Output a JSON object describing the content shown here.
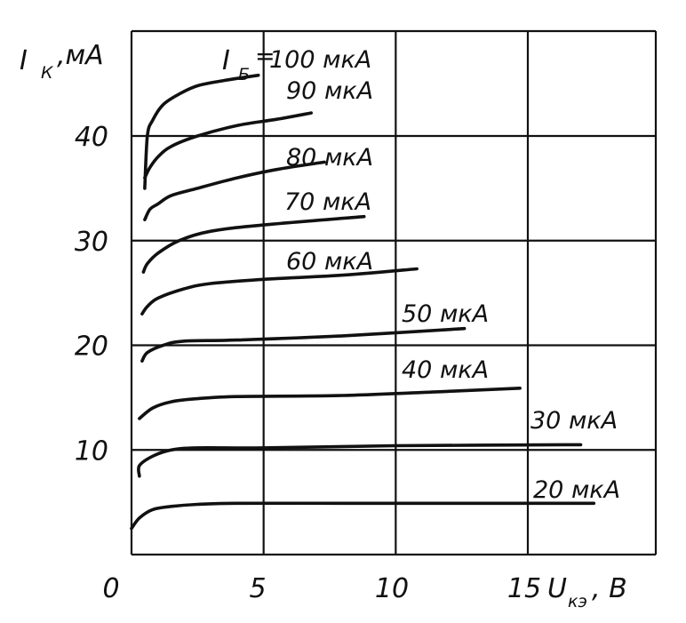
{
  "chart_data": {
    "type": "line",
    "title": "",
    "xlabel": {
      "main": "U",
      "sub": "кэ",
      "unit": ", В"
    },
    "ylabel": {
      "main": "I",
      "sub": "К",
      "unit": ",мА"
    },
    "parameter_label": {
      "main": "I",
      "sub": "Б",
      "eq": "="
    },
    "xlim": [
      0,
      19
    ],
    "ylim": [
      0,
      50
    ],
    "x_ticks": [
      0,
      5,
      10,
      15
    ],
    "y_ticks": [
      10,
      20,
      30,
      40
    ],
    "x_tick_labels": [
      "0",
      "5",
      "10",
      "15"
    ],
    "y_tick_labels": [
      "10",
      "20",
      "30",
      "40"
    ],
    "grid": true,
    "series": [
      {
        "name": "20 мкА",
        "x": [
          0,
          0.3,
          0.8,
          1.5,
          2.5,
          4,
          8,
          12,
          17.5
        ],
        "y": [
          2.5,
          3.5,
          4.3,
          4.6,
          4.8,
          4.9,
          4.9,
          4.9,
          4.9
        ]
      },
      {
        "name": "30 мкА",
        "x": [
          0.3,
          0.3,
          0.8,
          1.5,
          2.5,
          5,
          10,
          17
        ],
        "y": [
          7.5,
          8.5,
          9.4,
          10.0,
          10.2,
          10.2,
          10.4,
          10.5
        ]
      },
      {
        "name": "40 мкА",
        "x": [
          0.3,
          0.8,
          1.5,
          2.5,
          4,
          8,
          12,
          14.7
        ],
        "y": [
          13,
          14,
          14.6,
          14.9,
          15.1,
          15.2,
          15.6,
          15.9
        ]
      },
      {
        "name": "50 мкА",
        "x": [
          0.4,
          0.6,
          1.2,
          2,
          4,
          8,
          12.6
        ],
        "y": [
          18.5,
          19.3,
          20.0,
          20.4,
          20.5,
          20.9,
          21.6
        ]
      },
      {
        "name": "60 мкА",
        "x": [
          0.4,
          0.6,
          1,
          2,
          3,
          5,
          8,
          10.8
        ],
        "y": [
          23,
          23.7,
          24.5,
          25.4,
          25.9,
          26.3,
          26.7,
          27.3
        ]
      },
      {
        "name": "70 мкА",
        "x": [
          0.45,
          0.6,
          1,
          1.8,
          3,
          5,
          8.8
        ],
        "y": [
          27,
          27.8,
          28.8,
          30.0,
          30.9,
          31.5,
          32.3
        ]
      },
      {
        "name": "80 мкА",
        "x": [
          0.5,
          0.7,
          1,
          1.5,
          2.5,
          4,
          5.5,
          7.3
        ],
        "y": [
          32,
          33,
          33.5,
          34.3,
          35.0,
          36.0,
          36.8,
          37.5
        ]
      },
      {
        "name": "90 мкА",
        "x": [
          0.5,
          0.7,
          1,
          1.5,
          2.5,
          4,
          5.5,
          6.8
        ],
        "y": [
          36,
          37,
          38.0,
          39.0,
          40.0,
          41.0,
          41.6,
          42.2
        ]
      },
      {
        "name": "100 мкА",
        "x": [
          0.5,
          0.6,
          0.8,
          1.2,
          1.8,
          2.5,
          3.5,
          4.8
        ],
        "y": [
          35,
          40,
          41.5,
          43,
          44,
          44.8,
          45.3,
          45.8
        ]
      }
    ]
  }
}
